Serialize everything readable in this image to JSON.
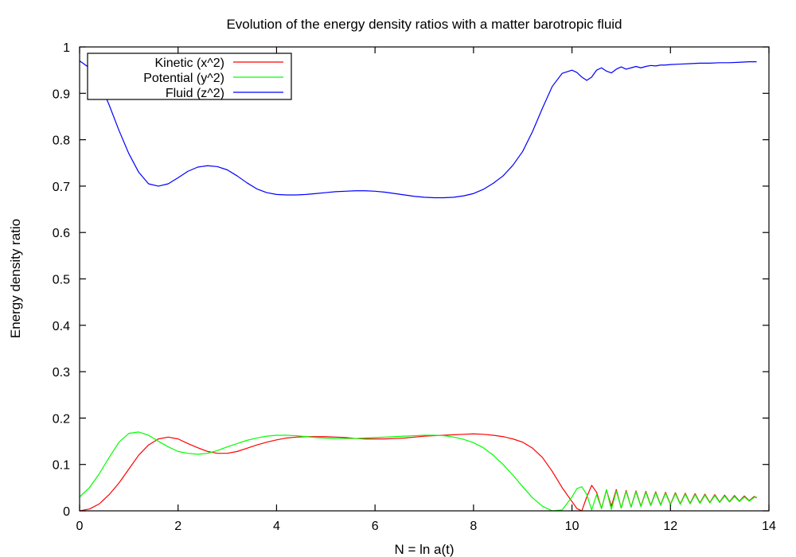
{
  "chart_data": {
    "type": "line",
    "title": "Evolution of the energy density ratios with a matter barotropic fluid",
    "xlabel": "N = ln a(t)",
    "ylabel": "Energy density ratio",
    "xlim": [
      0,
      14
    ],
    "ylim": [
      0,
      1
    ],
    "xticks": [
      0,
      2,
      4,
      6,
      8,
      10,
      12,
      14
    ],
    "yticks": [
      0,
      0.1,
      0.2,
      0.3,
      0.4,
      0.5,
      0.6,
      0.7,
      0.8,
      0.9,
      1
    ],
    "ytick_labels": [
      "0",
      "0.1",
      "0.2",
      "0.3",
      "0.4",
      "0.5",
      "0.6",
      "0.7",
      "0.8",
      "0.9",
      "1"
    ],
    "legend_position": "top-left",
    "grid": false,
    "series": [
      {
        "name": "Kinetic (x^2)",
        "color": "#ff0000",
        "x": [
          0,
          0.2,
          0.4,
          0.6,
          0.8,
          1.0,
          1.2,
          1.4,
          1.6,
          1.8,
          2.0,
          2.2,
          2.4,
          2.6,
          2.8,
          3.0,
          3.2,
          3.4,
          3.6,
          3.8,
          4.0,
          4.2,
          4.4,
          4.6,
          4.8,
          5.0,
          5.2,
          5.4,
          5.6,
          5.8,
          6.0,
          6.2,
          6.4,
          6.6,
          6.8,
          7.0,
          7.2,
          7.4,
          7.6,
          7.8,
          8.0,
          8.2,
          8.4,
          8.6,
          8.8,
          9.0,
          9.2,
          9.4,
          9.6,
          9.8,
          10.0,
          10.1,
          10.2,
          10.3,
          10.4,
          10.5,
          10.6,
          10.7,
          10.8,
          10.9,
          11.0,
          11.1,
          11.2,
          11.3,
          11.4,
          11.5,
          11.6,
          11.7,
          11.8,
          11.9,
          12.0,
          12.1,
          12.2,
          12.3,
          12.4,
          12.5,
          12.6,
          12.7,
          12.8,
          12.9,
          13.0,
          13.1,
          13.2,
          13.3,
          13.4,
          13.5,
          13.6,
          13.7,
          13.75
        ],
        "y": [
          0.0,
          0.004,
          0.015,
          0.035,
          0.06,
          0.09,
          0.12,
          0.142,
          0.155,
          0.159,
          0.155,
          0.145,
          0.136,
          0.128,
          0.124,
          0.124,
          0.128,
          0.135,
          0.142,
          0.148,
          0.153,
          0.157,
          0.159,
          0.16,
          0.16,
          0.16,
          0.159,
          0.158,
          0.156,
          0.155,
          0.155,
          0.155,
          0.156,
          0.157,
          0.159,
          0.161,
          0.162,
          0.163,
          0.164,
          0.165,
          0.166,
          0.165,
          0.163,
          0.16,
          0.155,
          0.148,
          0.135,
          0.115,
          0.085,
          0.05,
          0.02,
          0.005,
          0.0,
          0.03,
          0.055,
          0.04,
          0.005,
          0.045,
          0.01,
          0.046,
          0.006,
          0.044,
          0.008,
          0.043,
          0.01,
          0.042,
          0.012,
          0.041,
          0.013,
          0.04,
          0.014,
          0.039,
          0.015,
          0.038,
          0.016,
          0.037,
          0.017,
          0.036,
          0.018,
          0.035,
          0.019,
          0.034,
          0.02,
          0.033,
          0.021,
          0.032,
          0.022,
          0.031,
          0.028
        ]
      },
      {
        "name": "Potential (y^2)",
        "color": "#00ff00",
        "x": [
          0,
          0.2,
          0.4,
          0.6,
          0.8,
          1.0,
          1.2,
          1.4,
          1.6,
          1.8,
          2.0,
          2.2,
          2.4,
          2.6,
          2.8,
          3.0,
          3.2,
          3.4,
          3.6,
          3.8,
          4.0,
          4.2,
          4.4,
          4.6,
          4.8,
          5.0,
          5.2,
          5.4,
          5.6,
          5.8,
          6.0,
          6.2,
          6.4,
          6.6,
          6.8,
          7.0,
          7.2,
          7.4,
          7.6,
          7.8,
          8.0,
          8.2,
          8.4,
          8.6,
          8.8,
          9.0,
          9.2,
          9.4,
          9.6,
          9.8,
          10.0,
          10.1,
          10.2,
          10.3,
          10.4,
          10.5,
          10.6,
          10.7,
          10.8,
          10.9,
          11.0,
          11.1,
          11.2,
          11.3,
          11.4,
          11.5,
          11.6,
          11.7,
          11.8,
          11.9,
          12.0,
          12.1,
          12.2,
          12.3,
          12.4,
          12.5,
          12.6,
          12.7,
          12.8,
          12.9,
          13.0,
          13.1,
          13.2,
          13.3,
          13.4,
          13.5,
          13.6,
          13.7,
          13.75
        ],
        "y": [
          0.03,
          0.05,
          0.08,
          0.115,
          0.148,
          0.167,
          0.17,
          0.163,
          0.15,
          0.138,
          0.128,
          0.124,
          0.122,
          0.124,
          0.13,
          0.138,
          0.145,
          0.152,
          0.157,
          0.161,
          0.163,
          0.163,
          0.162,
          0.16,
          0.158,
          0.157,
          0.156,
          0.156,
          0.156,
          0.157,
          0.158,
          0.159,
          0.16,
          0.161,
          0.162,
          0.163,
          0.163,
          0.162,
          0.159,
          0.154,
          0.147,
          0.136,
          0.12,
          0.1,
          0.077,
          0.052,
          0.028,
          0.01,
          0.0,
          0.002,
          0.03,
          0.048,
          0.052,
          0.035,
          0.002,
          0.035,
          0.005,
          0.046,
          0.003,
          0.043,
          0.006,
          0.042,
          0.008,
          0.041,
          0.009,
          0.04,
          0.011,
          0.039,
          0.012,
          0.038,
          0.013,
          0.037,
          0.014,
          0.036,
          0.015,
          0.035,
          0.016,
          0.034,
          0.017,
          0.033,
          0.018,
          0.032,
          0.019,
          0.031,
          0.02,
          0.03,
          0.021,
          0.029,
          0.03
        ]
      },
      {
        "name": "Fluid (z^2)",
        "color": "#0000ff",
        "x": [
          0,
          0.2,
          0.4,
          0.6,
          0.8,
          1.0,
          1.2,
          1.4,
          1.6,
          1.8,
          2.0,
          2.2,
          2.4,
          2.6,
          2.8,
          3.0,
          3.2,
          3.4,
          3.6,
          3.8,
          4.0,
          4.2,
          4.4,
          4.6,
          4.8,
          5.0,
          5.2,
          5.4,
          5.6,
          5.8,
          6.0,
          6.2,
          6.4,
          6.6,
          6.8,
          7.0,
          7.2,
          7.4,
          7.6,
          7.8,
          8.0,
          8.2,
          8.4,
          8.6,
          8.8,
          9.0,
          9.2,
          9.4,
          9.6,
          9.8,
          10.0,
          10.1,
          10.2,
          10.3,
          10.4,
          10.5,
          10.6,
          10.7,
          10.8,
          10.9,
          11.0,
          11.1,
          11.2,
          11.3,
          11.4,
          11.5,
          11.6,
          11.7,
          11.8,
          11.9,
          12.0,
          12.2,
          12.4,
          12.6,
          12.8,
          13.0,
          13.2,
          13.4,
          13.6,
          13.75
        ],
        "y": [
          0.97,
          0.955,
          0.925,
          0.875,
          0.82,
          0.77,
          0.73,
          0.705,
          0.7,
          0.705,
          0.718,
          0.732,
          0.741,
          0.744,
          0.742,
          0.735,
          0.722,
          0.707,
          0.694,
          0.686,
          0.682,
          0.681,
          0.681,
          0.682,
          0.684,
          0.686,
          0.688,
          0.689,
          0.69,
          0.69,
          0.689,
          0.687,
          0.684,
          0.681,
          0.678,
          0.676,
          0.675,
          0.675,
          0.676,
          0.679,
          0.684,
          0.693,
          0.706,
          0.722,
          0.745,
          0.775,
          0.818,
          0.868,
          0.915,
          0.943,
          0.95,
          0.945,
          0.935,
          0.928,
          0.935,
          0.95,
          0.955,
          0.948,
          0.944,
          0.952,
          0.957,
          0.952,
          0.955,
          0.958,
          0.955,
          0.958,
          0.96,
          0.959,
          0.961,
          0.961,
          0.962,
          0.963,
          0.964,
          0.965,
          0.965,
          0.966,
          0.966,
          0.967,
          0.968,
          0.968
        ]
      }
    ]
  }
}
